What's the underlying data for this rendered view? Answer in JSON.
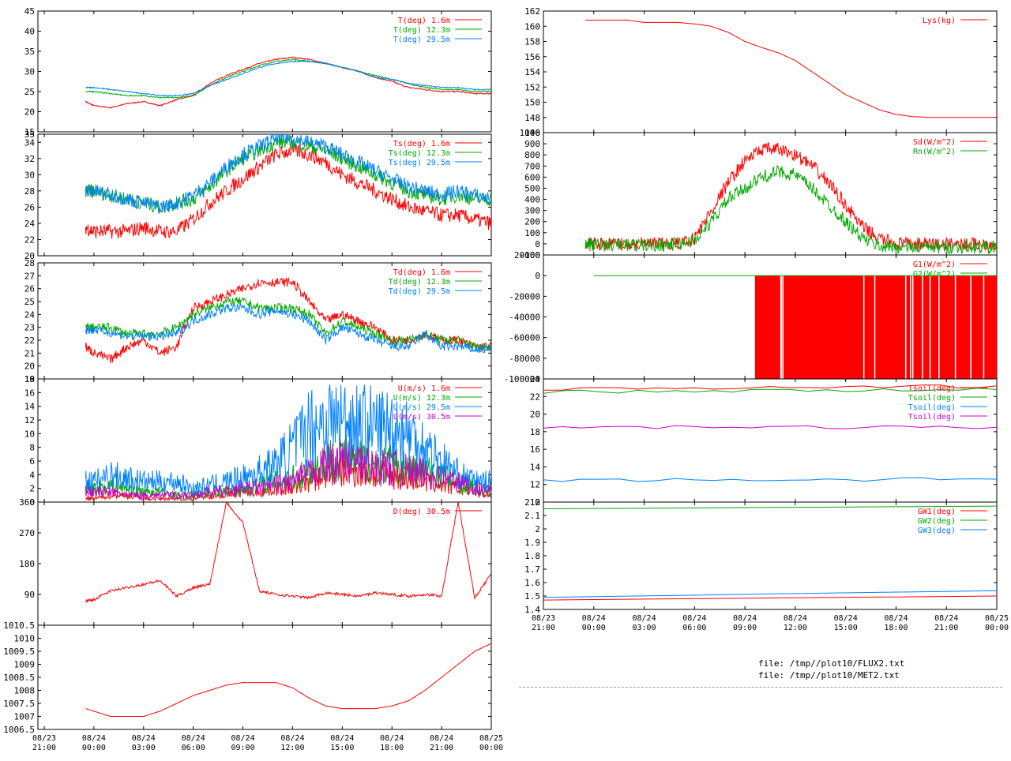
{
  "colors": {
    "red": "#ff0000",
    "green": "#00aa00",
    "blue": "#0080ff",
    "magenta": "#cc00cc"
  },
  "time_axis_labels": [
    [
      "08/23",
      "21:00"
    ],
    [
      "08/24",
      "00:00"
    ],
    [
      "08/24",
      "03:00"
    ],
    [
      "08/24",
      "06:00"
    ],
    [
      "08/24",
      "09:00"
    ],
    [
      "08/24",
      "12:00"
    ],
    [
      "08/24",
      "15:00"
    ],
    [
      "08/24",
      "18:00"
    ],
    [
      "08/24",
      "21:00"
    ],
    [
      "08/25",
      "00:00"
    ]
  ],
  "footer": {
    "file1": "file: /tmp//plot10/FLUX2.txt",
    "file2": "file: /tmp//plot10/MET2.txt"
  },
  "chart_data": [
    {
      "id": "air_temp",
      "type": "line",
      "ylim": [
        15,
        45
      ],
      "yticks": [
        15,
        20,
        25,
        30,
        35,
        40,
        45
      ],
      "x": [
        0,
        1,
        2,
        2.5,
        3,
        4,
        5,
        6,
        7,
        8,
        9,
        10,
        11,
        12,
        13,
        14,
        15,
        16,
        17,
        18,
        19,
        20,
        21,
        22,
        23,
        24,
        25,
        26,
        27
      ],
      "series": [
        {
          "name": "T(deg)  1.6m",
          "color": "red",
          "values": [
            null,
            null,
            null,
            22.5,
            21.5,
            21,
            22,
            22.5,
            21.5,
            23,
            24,
            27,
            29,
            30.5,
            32,
            33,
            33.5,
            33,
            32,
            31,
            30,
            28.5,
            27.5,
            26,
            25.5,
            25,
            25,
            24.5,
            24.5
          ]
        },
        {
          "name": "T(deg) 12.3m",
          "color": "green",
          "values": [
            null,
            null,
            null,
            25,
            25,
            24.5,
            24,
            24,
            23.5,
            23.5,
            24,
            26.5,
            28.5,
            30,
            31.5,
            32.5,
            33,
            32.5,
            32,
            31,
            30,
            29,
            28,
            27,
            26,
            25.5,
            25.5,
            25,
            25
          ]
        },
        {
          "name": "T(deg) 29.5m",
          "color": "blue",
          "values": [
            null,
            null,
            null,
            26,
            26,
            25.5,
            25,
            24.5,
            24,
            24,
            24.5,
            26.5,
            28,
            29.5,
            31,
            32,
            32.5,
            32.5,
            32,
            31,
            30,
            28.5,
            28,
            27,
            26.5,
            26,
            26,
            25.5,
            25.5
          ]
        }
      ]
    },
    {
      "id": "sonic_temp",
      "type": "line",
      "ylim": [
        20,
        35
      ],
      "yticks": [
        20,
        22,
        24,
        26,
        28,
        30,
        32,
        34,
        35
      ],
      "x": [
        0,
        1,
        2,
        2.5,
        3,
        4,
        5,
        6,
        7,
        8,
        9,
        10,
        11,
        12,
        13,
        14,
        15,
        16,
        17,
        18,
        19,
        20,
        21,
        22,
        23,
        24,
        25,
        26,
        27
      ],
      "series": [
        {
          "name": "Ts(deg)  1.6m",
          "color": "red",
          "values": [
            null,
            null,
            null,
            23.5,
            23,
            23,
            23,
            23.5,
            23,
            23,
            24.5,
            26.5,
            28,
            29.5,
            31,
            32.5,
            33,
            32.5,
            31.5,
            30,
            29,
            28,
            27,
            26,
            25.5,
            25,
            25,
            24.5,
            24
          ]
        },
        {
          "name": "Ts(deg) 12.3m",
          "color": "green",
          "values": [
            null,
            null,
            null,
            28,
            28,
            27.5,
            27,
            26.5,
            26,
            26.5,
            27,
            28.5,
            30.5,
            32,
            33,
            34,
            34,
            33.5,
            33,
            32,
            31,
            30,
            29,
            28,
            27.5,
            27,
            27.5,
            27,
            27
          ]
        },
        {
          "name": "Ts(deg) 29.5m",
          "color": "blue",
          "values": [
            null,
            null,
            null,
            28,
            28,
            27.5,
            27,
            26.5,
            26,
            26.5,
            27.5,
            29,
            31,
            32.5,
            33.5,
            34.5,
            34.5,
            34,
            33.5,
            32.5,
            31.5,
            30.5,
            29.5,
            28.5,
            28,
            27.5,
            28,
            27.5,
            27
          ]
        }
      ]
    },
    {
      "id": "dew_point",
      "type": "line",
      "ylim": [
        19,
        28
      ],
      "yticks": [
        19,
        20,
        21,
        22,
        23,
        24,
        25,
        26,
        27,
        28
      ],
      "x": [
        0,
        1,
        2,
        2.5,
        3,
        4,
        5,
        6,
        7,
        8,
        9,
        10,
        11,
        12,
        13,
        14,
        15,
        16,
        17,
        18,
        19,
        20,
        21,
        22,
        23,
        24,
        25,
        26,
        27
      ],
      "series": [
        {
          "name": "Td(deg)  1.6m",
          "color": "red",
          "values": [
            null,
            null,
            null,
            21.5,
            21,
            20.5,
            21.5,
            22,
            21,
            21.5,
            24.5,
            25,
            25.5,
            26,
            26.5,
            26.5,
            26.5,
            25,
            23.5,
            24,
            23.5,
            23,
            22,
            22,
            22.5,
            22,
            22,
            21.5,
            21.5
          ]
        },
        {
          "name": "Td(deg) 12.3m",
          "color": "green",
          "values": [
            null,
            null,
            null,
            23,
            23,
            23,
            22.5,
            22.5,
            22.5,
            23,
            24,
            24.5,
            25,
            25,
            24.5,
            24.5,
            24.5,
            24,
            22.5,
            23.5,
            23,
            22.5,
            22,
            22,
            22.5,
            22,
            22,
            21.5,
            21.5
          ]
        },
        {
          "name": "Td(deg) 29.5m",
          "color": "blue",
          "values": [
            null,
            null,
            null,
            22.8,
            22.8,
            22.6,
            22.3,
            22.3,
            22.3,
            22.5,
            23.5,
            24,
            24.5,
            24.5,
            24,
            24.3,
            24,
            23.5,
            22,
            23,
            22.5,
            22,
            21.5,
            21.5,
            22.5,
            21.5,
            21.5,
            21.3,
            21.3
          ]
        }
      ]
    },
    {
      "id": "wind_speed",
      "type": "line",
      "ylim": [
        0,
        18
      ],
      "yticks": [
        0,
        2,
        4,
        6,
        8,
        10,
        12,
        14,
        16,
        18
      ],
      "x": [
        0,
        1,
        2,
        2.5,
        3,
        4,
        5,
        6,
        7,
        8,
        9,
        10,
        11,
        12,
        13,
        14,
        15,
        16,
        17,
        18,
        19,
        20,
        21,
        22,
        23,
        24,
        25,
        26,
        27
      ],
      "series": [
        {
          "name": "U(m/s)  1.6m",
          "color": "red",
          "values": [
            null,
            null,
            null,
            0.5,
            0.5,
            1,
            1,
            0.5,
            0.5,
            0.5,
            0.5,
            1,
            1,
            1.5,
            1.5,
            2,
            2,
            3,
            4,
            4.5,
            4.5,
            4,
            4,
            3.5,
            3,
            2.5,
            2,
            1.5,
            1
          ]
        },
        {
          "name": "U(m/s) 12.3m",
          "color": "green",
          "values": [
            null,
            null,
            null,
            2,
            2,
            2.5,
            2,
            1.5,
            1.5,
            1,
            1,
            1.5,
            1.5,
            2,
            2.5,
            3,
            3.5,
            4.5,
            6,
            6.5,
            6,
            5.5,
            5.5,
            5,
            4.5,
            4,
            3,
            2,
            1.5
          ]
        },
        {
          "name": "U(m/s) 29.5m",
          "color": "blue",
          "values": [
            null,
            null,
            null,
            3,
            3,
            4,
            3.5,
            3,
            3,
            3,
            2,
            2.5,
            3,
            3.5,
            4.5,
            5.5,
            8,
            11,
            12,
            12,
            11.5,
            11,
            11,
            10,
            8,
            6,
            4,
            3,
            3
          ]
        },
        {
          "name": "U(m/s) 30.5m",
          "color": "magenta",
          "values": [
            null,
            null,
            null,
            1.5,
            1.5,
            1.5,
            1,
            1,
            1,
            1,
            1,
            1.5,
            1.5,
            2,
            2,
            2.5,
            3,
            4,
            5.5,
            6,
            5.5,
            5,
            5,
            4.5,
            4,
            3.5,
            3,
            2,
            1.5
          ]
        }
      ]
    },
    {
      "id": "wind_dir",
      "type": "line",
      "ylim": [
        0,
        360
      ],
      "yticks": [
        90,
        180,
        270,
        360
      ],
      "x": [
        0,
        1,
        2,
        2.5,
        3,
        4,
        5,
        6,
        7,
        8,
        9,
        10,
        11,
        12,
        13,
        14,
        15,
        16,
        17,
        18,
        19,
        20,
        21,
        22,
        23,
        24,
        25,
        26,
        27
      ],
      "series": [
        {
          "name": "D(deg)  30.5m",
          "color": "red",
          "values": [
            null,
            null,
            null,
            70,
            75,
            100,
            110,
            120,
            130,
            85,
            110,
            120,
            360,
            300,
            100,
            90,
            85,
            80,
            95,
            90,
            85,
            95,
            90,
            85,
            90,
            85,
            360,
            80,
            150
          ]
        }
      ]
    },
    {
      "id": "pressure",
      "type": "line",
      "ylim": [
        1006.5,
        1010.5
      ],
      "yticks": [
        1006.5,
        1007,
        1007.5,
        1008,
        1008.5,
        1009,
        1009.5,
        1010,
        1010.5
      ],
      "x": [
        0,
        1,
        2,
        2.5,
        3,
        4,
        5,
        6,
        7,
        8,
        9,
        10,
        11,
        12,
        13,
        14,
        15,
        16,
        17,
        18,
        19,
        20,
        21,
        22,
        23,
        24,
        25,
        26,
        27
      ],
      "series": [
        {
          "name": "",
          "color": "red",
          "values": [
            null,
            null,
            null,
            1007.3,
            1007.2,
            1007,
            1007,
            1007,
            1007.2,
            1007.5,
            1007.8,
            1008,
            1008.2,
            1008.3,
            1008.3,
            1008.3,
            1008.1,
            1007.7,
            1007.4,
            1007.3,
            1007.3,
            1007.3,
            1007.4,
            1007.6,
            1008,
            1008.5,
            1009,
            1009.5,
            1009.8
          ]
        }
      ]
    },
    {
      "id": "lysimeter",
      "type": "line",
      "ylim": [
        146,
        162
      ],
      "yticks": [
        146,
        148,
        150,
        152,
        154,
        156,
        158,
        160,
        162
      ],
      "x": [
        0,
        1,
        2,
        2.5,
        3,
        4,
        5,
        6,
        7,
        8,
        9,
        10,
        11,
        12,
        13,
        14,
        15,
        16,
        17,
        18,
        19,
        20,
        21,
        22,
        23,
        24,
        25,
        26,
        27
      ],
      "series": [
        {
          "name": "Lys(kg)",
          "color": "red",
          "values": [
            null,
            null,
            null,
            160.8,
            160.8,
            160.8,
            160.8,
            160.5,
            160.5,
            160.5,
            160.3,
            160,
            159.2,
            158,
            157.2,
            156.5,
            155.5,
            154,
            152.5,
            151,
            150,
            149,
            148.4,
            148.1,
            148,
            148,
            148,
            148,
            148
          ]
        }
      ]
    },
    {
      "id": "radiation",
      "type": "line",
      "ylim": [
        -100,
        1000
      ],
      "yticks": [
        -100,
        0,
        100,
        200,
        300,
        400,
        500,
        600,
        700,
        800,
        900,
        1000
      ],
      "x": [
        0,
        1,
        2,
        2.5,
        3,
        4,
        5,
        6,
        7,
        8,
        9,
        10,
        11,
        12,
        13,
        14,
        15,
        16,
        17,
        18,
        19,
        20,
        21,
        22,
        23,
        24,
        25,
        26,
        27
      ],
      "series": [
        {
          "name": "Sd(W/m^2)",
          "color": "red",
          "values": [
            null,
            null,
            null,
            0,
            0,
            0,
            0,
            0,
            0,
            0,
            50,
            300,
            550,
            750,
            850,
            850,
            800,
            700,
            550,
            350,
            150,
            50,
            0,
            0,
            0,
            0,
            0,
            0,
            0
          ]
        },
        {
          "name": "Rn(W/m^2)",
          "color": "green",
          "values": [
            null,
            null,
            null,
            -10,
            -10,
            -10,
            -10,
            -10,
            -10,
            0,
            30,
            200,
            400,
            500,
            600,
            650,
            620,
            500,
            350,
            200,
            50,
            -20,
            -30,
            -30,
            -30,
            -30,
            -30,
            -30,
            -30
          ]
        }
      ]
    },
    {
      "id": "ground_flux",
      "type": "line",
      "ylim": [
        -100000,
        20000
      ],
      "yticks": [
        -100000,
        -80000,
        -60000,
        -40000,
        -20000,
        0,
        20000
      ],
      "series": [
        {
          "name": "G1(W/m^2)",
          "color": "red",
          "values": [
            0,
            -100000,
            0
          ]
        },
        {
          "name": "G2(W/m^2)",
          "color": "green",
          "values": [
            0,
            0,
            0
          ]
        }
      ]
    },
    {
      "id": "soil_temp",
      "type": "line",
      "ylim": [
        10,
        24
      ],
      "yticks": [
        10,
        12,
        14,
        16,
        18,
        20,
        22,
        24
      ],
      "x": [
        0,
        27
      ],
      "series": [
        {
          "name": "Tsoil(deg)",
          "color": "red",
          "values": [
            22.8,
            23.2
          ]
        },
        {
          "name": "Tsoil(deg)",
          "color": "green",
          "values": [
            22.5,
            22.8
          ]
        },
        {
          "name": "Tsoil(deg)",
          "color": "blue",
          "values": [
            12.5,
            12.6
          ]
        },
        {
          "name": "Tsoil(deg)",
          "color": "magenta",
          "values": [
            18.5,
            18.5
          ]
        }
      ]
    },
    {
      "id": "groundwater",
      "type": "line",
      "ylim": [
        1.4,
        2.2
      ],
      "yticks": [
        1.4,
        1.5,
        1.6,
        1.7,
        1.8,
        1.9,
        2,
        2.1,
        2.2
      ],
      "x": [
        0,
        27
      ],
      "series": [
        {
          "name": "GW1(deg)",
          "color": "red",
          "values": [
            1.47,
            1.5
          ]
        },
        {
          "name": "GW2(deg)",
          "color": "green",
          "values": [
            2.15,
            2.17
          ]
        },
        {
          "name": "GW3(deg)",
          "color": "blue",
          "values": [
            1.49,
            1.54
          ]
        }
      ]
    }
  ]
}
